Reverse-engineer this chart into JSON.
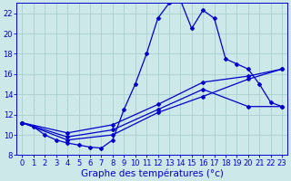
{
  "title": "Graphe des températures (°c)",
  "bg_color": "#cce8e8",
  "grid_color": "#aacece",
  "line_color": "#0000cc",
  "xlim": [
    -0.5,
    23.5
  ],
  "ylim": [
    8,
    23
  ],
  "xticks": [
    0,
    1,
    2,
    3,
    4,
    5,
    6,
    7,
    8,
    9,
    10,
    11,
    12,
    13,
    14,
    15,
    16,
    17,
    18,
    19,
    20,
    21,
    22,
    23
  ],
  "yticks": [
    8,
    10,
    12,
    14,
    16,
    18,
    20,
    22
  ],
  "series_main_x": [
    0,
    1,
    2,
    3,
    4,
    5,
    6,
    7,
    8,
    9,
    10,
    11,
    12,
    13,
    14,
    15,
    16,
    17,
    18,
    19,
    20,
    21,
    22,
    23
  ],
  "series_main_y": [
    11.2,
    10.8,
    10.0,
    9.5,
    9.2,
    9.0,
    8.8,
    8.7,
    9.5,
    12.5,
    15.0,
    18.0,
    21.5,
    23.0,
    23.3,
    20.5,
    22.3,
    21.5,
    17.5,
    17.0,
    16.5,
    15.0,
    13.2,
    12.8
  ],
  "series2_x": [
    0,
    4,
    8,
    12,
    16,
    20,
    23
  ],
  "series2_y": [
    11.2,
    9.5,
    10.0,
    12.2,
    13.8,
    15.5,
    16.5
  ],
  "series3_x": [
    0,
    4,
    8,
    12,
    16,
    20,
    23
  ],
  "series3_y": [
    11.2,
    10.2,
    11.0,
    13.0,
    15.2,
    15.8,
    16.5
  ],
  "series4_x": [
    0,
    4,
    8,
    12,
    16,
    20,
    23
  ],
  "series4_y": [
    11.2,
    9.8,
    10.5,
    12.5,
    14.5,
    12.8,
    12.8
  ],
  "xlabel_fontsize": 7.5,
  "tick_fontsize": 6
}
